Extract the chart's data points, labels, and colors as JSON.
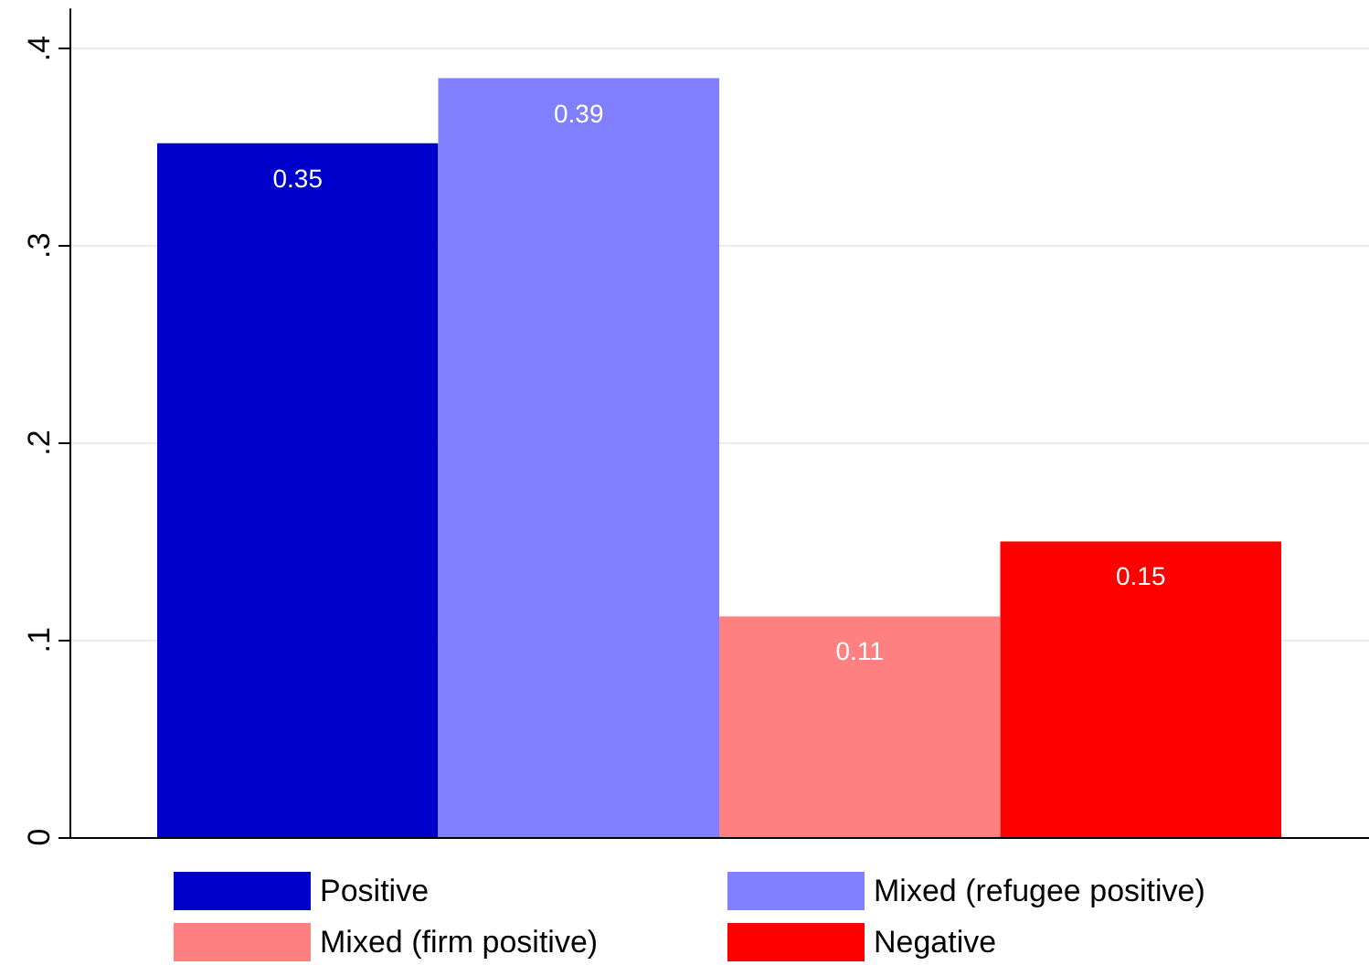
{
  "chart_data": {
    "type": "bar",
    "categories": [
      null
    ],
    "series": [
      {
        "name": "Positive",
        "color": "#0000cc",
        "values": [
          0.352
        ],
        "value_labels": [
          "0.35"
        ]
      },
      {
        "name": "Mixed (refugee positive)",
        "color": "#8080ff",
        "values": [
          0.385
        ],
        "value_labels": [
          "0.39"
        ]
      },
      {
        "name": "Mixed (firm positive)",
        "color": "#ff8080",
        "values": [
          0.112
        ],
        "value_labels": [
          "0.11"
        ]
      },
      {
        "name": "Negative",
        "color": "#ff0000",
        "values": [
          0.15
        ],
        "value_labels": [
          "0.15"
        ]
      }
    ],
    "ylim": [
      0,
      0.42
    ],
    "yticks": [
      0,
      {
        "value": 0.1,
        "label": ".1"
      },
      {
        "value": 0.2,
        "label": ".2"
      },
      {
        "value": 0.3,
        "label": ".3"
      },
      {
        "value": 0.4,
        "label": ".4"
      }
    ],
    "grid": "y",
    "legend": "bottom",
    "tick_labels": "y"
  }
}
